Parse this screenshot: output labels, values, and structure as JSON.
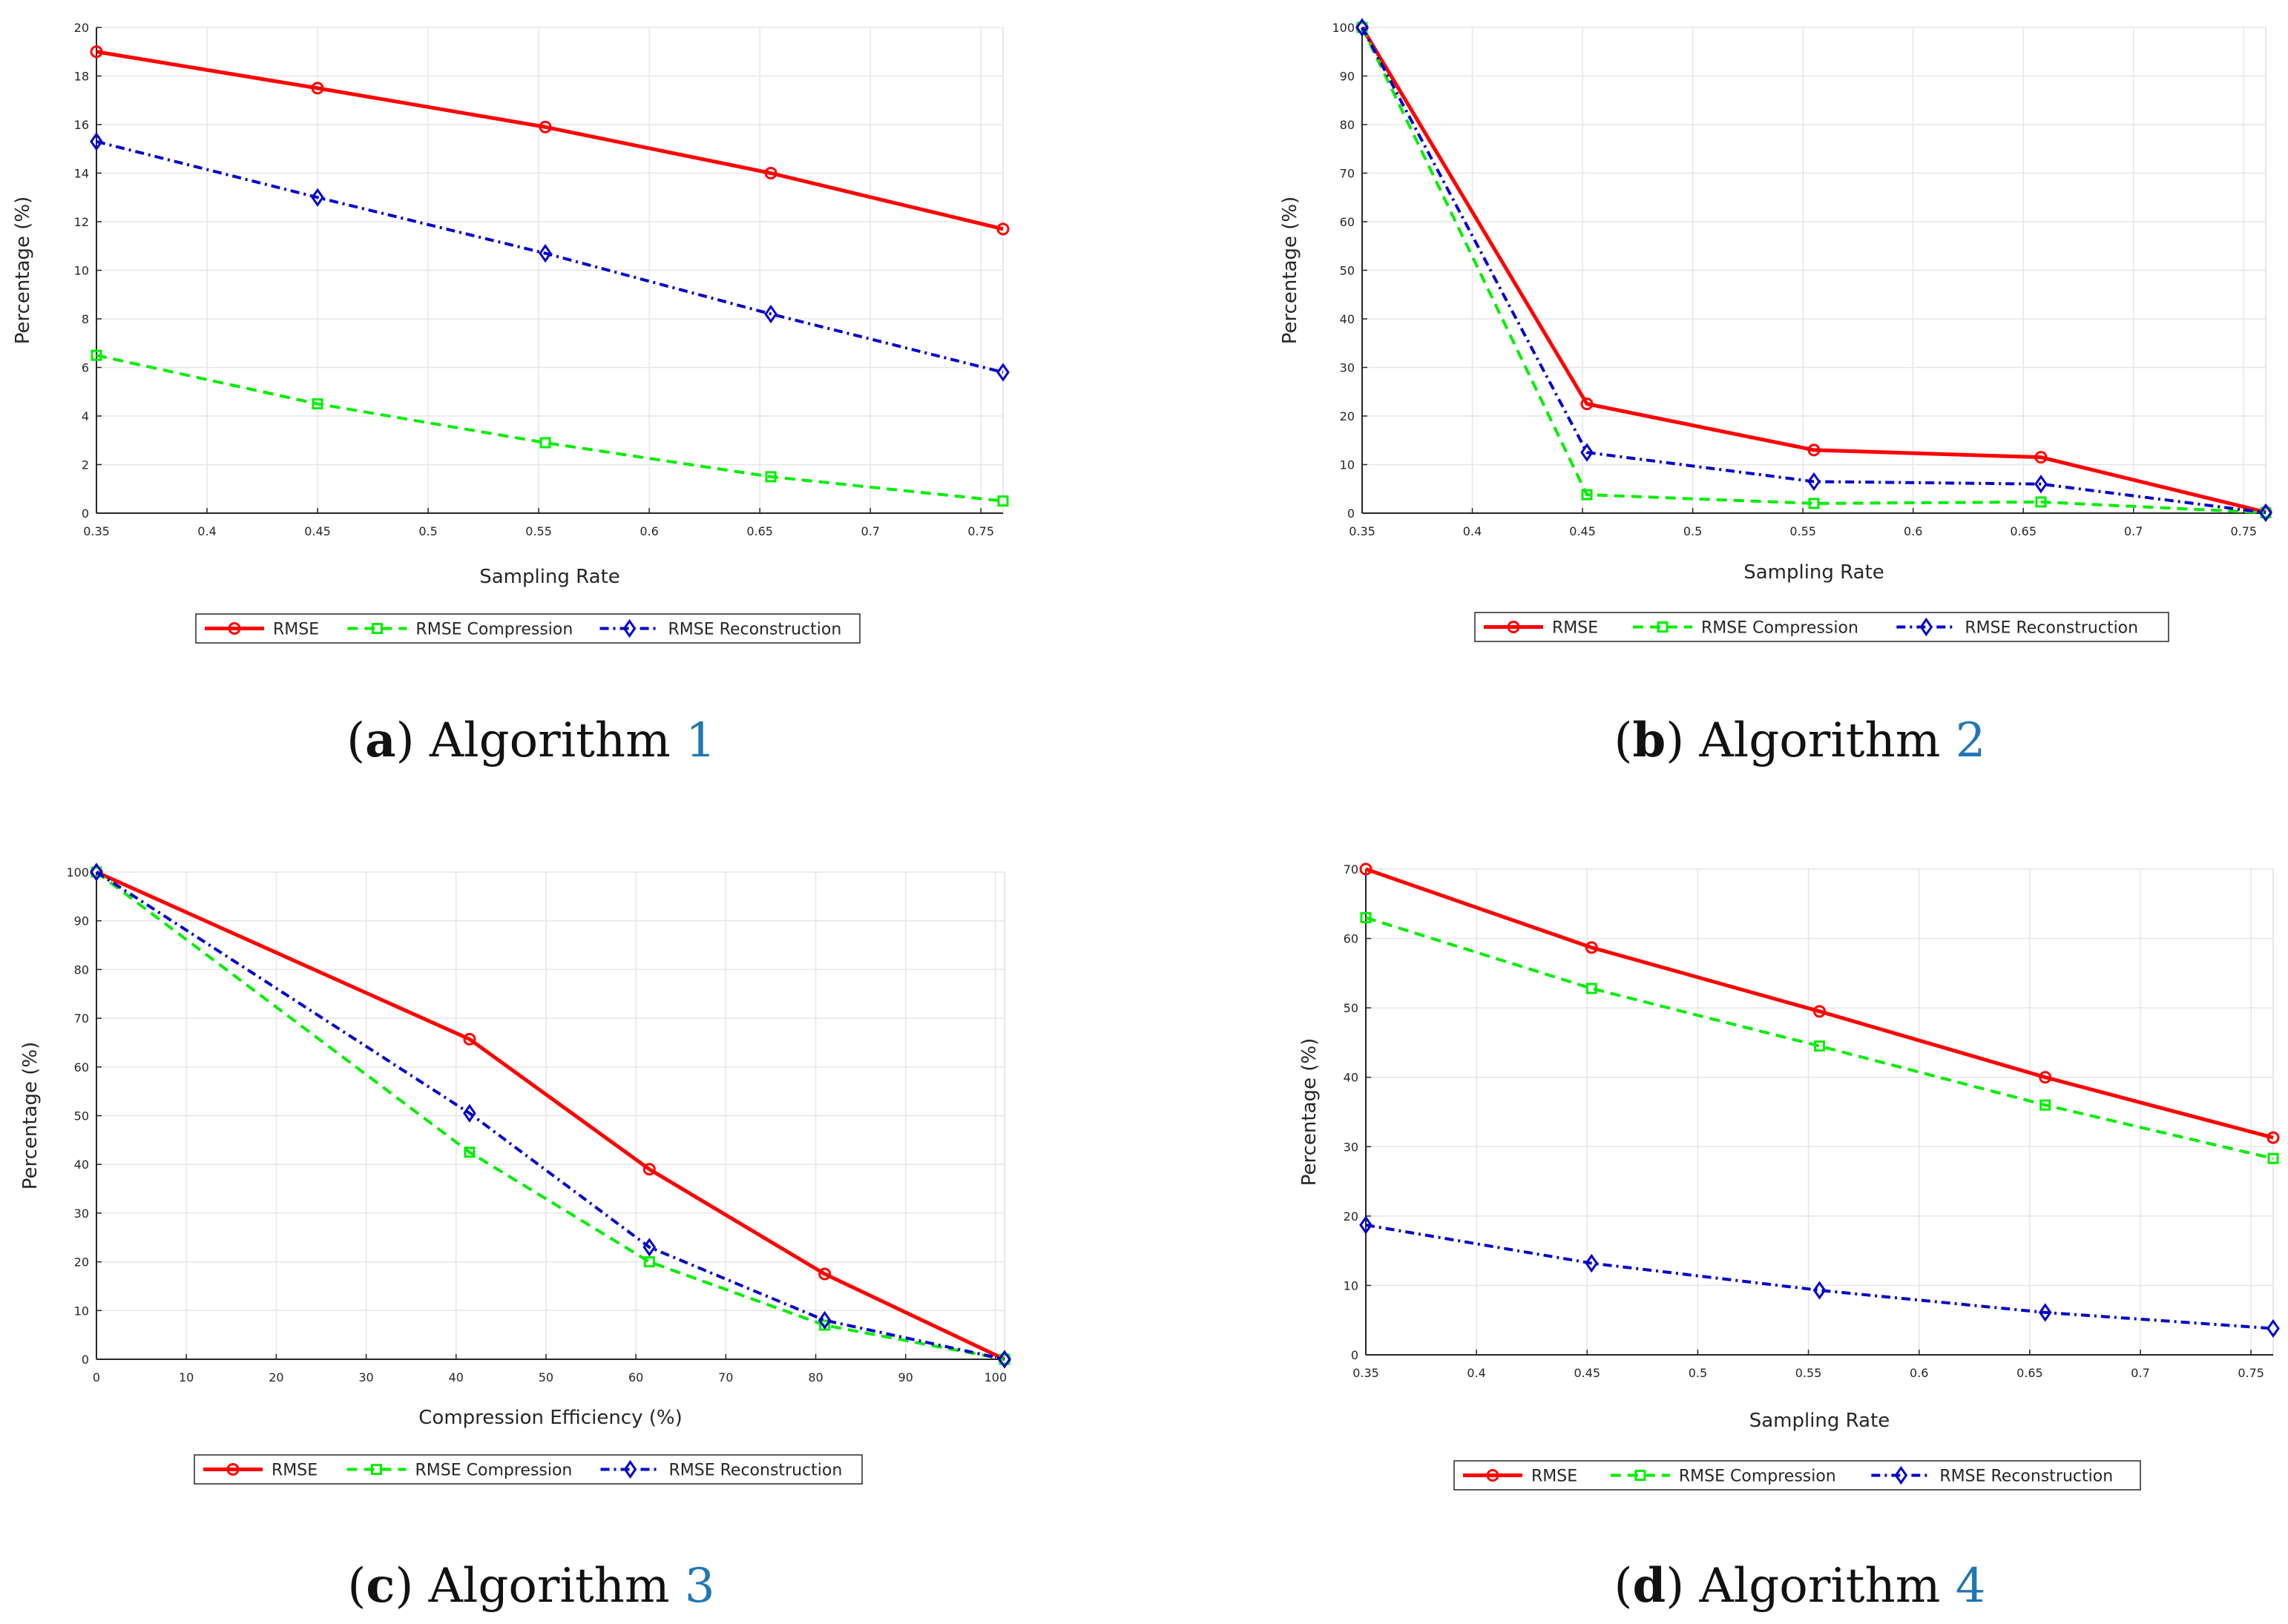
{
  "colors": {
    "rmse": "#ff0000",
    "compression": "#00ee00",
    "reconstruction": "#0000cc",
    "grid": "#e6e6e6",
    "caption_ref": "#1f77b4"
  },
  "legend": [
    "RMSE",
    "RMSE Compression",
    "RMSE Reconstruction"
  ],
  "chart_data": [
    {
      "type": "line",
      "xlabel": "Sampling Rate",
      "ylabel": "Percentage (%)",
      "xlim": [
        0.35,
        0.76
      ],
      "ylim": [
        0,
        20
      ],
      "xticks": [
        "0.35",
        "0.4",
        "0.45",
        "0.5",
        "0.55",
        "0.6",
        "0.65",
        "0.7",
        "0.75"
      ],
      "yticks": [
        "0",
        "2",
        "4",
        "6",
        "8",
        "10",
        "12",
        "14",
        "16",
        "18",
        "20"
      ],
      "grid": true,
      "legend_position": "bottom",
      "x": [
        0.35,
        0.45,
        0.553,
        0.655,
        0.76
      ],
      "series": [
        {
          "name": "RMSE",
          "values": [
            19.0,
            17.5,
            15.9,
            14.0,
            11.7
          ]
        },
        {
          "name": "RMSE Compression",
          "values": [
            6.5,
            4.5,
            2.9,
            1.5,
            0.5
          ]
        },
        {
          "name": "RMSE Reconstruction",
          "values": [
            15.3,
            13.0,
            10.7,
            8.2,
            5.8
          ]
        }
      ],
      "caption": {
        "letter": "a",
        "text": "Algorithm",
        "ref": "1"
      }
    },
    {
      "type": "line",
      "xlabel": "Sampling Rate",
      "ylabel": "Percentage (%)",
      "xlim": [
        0.35,
        0.76
      ],
      "ylim": [
        0,
        100
      ],
      "xticks": [
        "0.35",
        "0.4",
        "0.45",
        "0.5",
        "0.55",
        "0.6",
        "0.65",
        "0.7",
        "0.75"
      ],
      "yticks": [
        "0",
        "10",
        "20",
        "30",
        "40",
        "50",
        "60",
        "70",
        "80",
        "90",
        "100"
      ],
      "grid": true,
      "legend_position": "bottom",
      "x": [
        0.35,
        0.452,
        0.555,
        0.658,
        0.76
      ],
      "series": [
        {
          "name": "RMSE",
          "values": [
            100,
            22.5,
            13.0,
            11.5,
            0.2
          ]
        },
        {
          "name": "RMSE Compression",
          "values": [
            100,
            3.8,
            2.0,
            2.3,
            0.1
          ]
        },
        {
          "name": "RMSE Reconstruction",
          "values": [
            100,
            12.5,
            6.5,
            6.0,
            0.1
          ]
        }
      ],
      "caption": {
        "letter": "b",
        "text": "Algorithm",
        "ref": "2"
      }
    },
    {
      "type": "line",
      "xlabel": "Compression Efficiency (%)",
      "ylabel": "Percentage (%)",
      "xlim": [
        0,
        101
      ],
      "ylim": [
        0,
        100
      ],
      "xticks": [
        "0",
        "10",
        "20",
        "30",
        "40",
        "50",
        "60",
        "70",
        "80",
        "90",
        "100"
      ],
      "yticks": [
        "0",
        "10",
        "20",
        "30",
        "40",
        "50",
        "60",
        "70",
        "80",
        "90",
        "100"
      ],
      "grid": true,
      "legend_position": "bottom",
      "x": [
        0,
        41.5,
        61.5,
        81,
        101
      ],
      "series": [
        {
          "name": "RMSE",
          "values": [
            100,
            65.7,
            39.0,
            17.5,
            0
          ]
        },
        {
          "name": "RMSE Compression",
          "values": [
            100,
            42.5,
            20.0,
            7.0,
            0
          ]
        },
        {
          "name": "RMSE Reconstruction",
          "values": [
            100,
            50.5,
            23.0,
            8.0,
            0
          ]
        }
      ],
      "caption": {
        "letter": "c",
        "text": "Algorithm",
        "ref": "3"
      }
    },
    {
      "type": "line",
      "xlabel": "Sampling Rate",
      "ylabel": "Percentage (%)",
      "xlim": [
        0.35,
        0.76
      ],
      "ylim": [
        0,
        70
      ],
      "xticks": [
        "0.35",
        "0.4",
        "0.45",
        "0.5",
        "0.55",
        "0.6",
        "0.65",
        "0.7",
        "0.75"
      ],
      "yticks": [
        "0",
        "10",
        "20",
        "30",
        "40",
        "50",
        "60",
        "70"
      ],
      "grid": true,
      "legend_position": "bottom",
      "x": [
        0.35,
        0.452,
        0.555,
        0.657,
        0.76
      ],
      "series": [
        {
          "name": "RMSE",
          "values": [
            70.0,
            58.7,
            49.5,
            40.0,
            31.3
          ]
        },
        {
          "name": "RMSE Compression",
          "values": [
            63.0,
            52.8,
            44.5,
            36.0,
            28.3
          ]
        },
        {
          "name": "RMSE Reconstruction",
          "values": [
            18.7,
            13.2,
            9.3,
            6.1,
            3.8
          ]
        }
      ],
      "caption": {
        "letter": "d",
        "text": "Algorithm",
        "ref": "4"
      }
    }
  ]
}
